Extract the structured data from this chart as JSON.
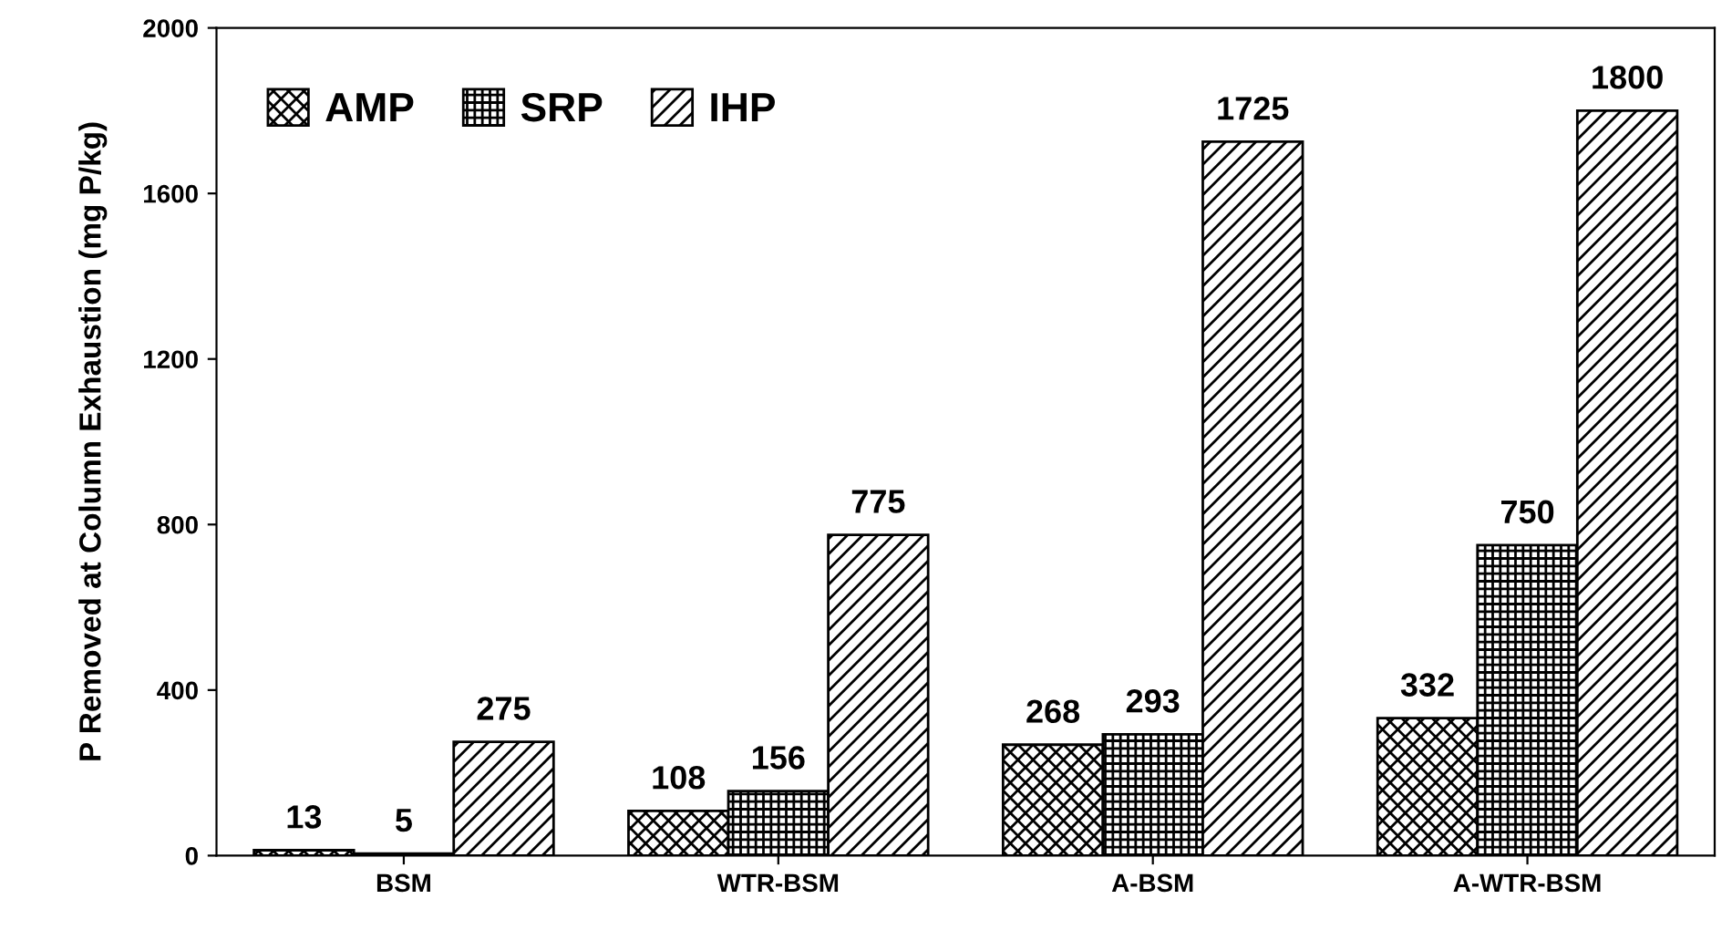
{
  "chart_data": {
    "type": "bar",
    "ylabel": "P Removed at Column Exhaustion (mg P/kg)",
    "categories": [
      "BSM",
      "WTR-BSM",
      "A-BSM",
      "A-WTR-BSM"
    ],
    "series": [
      {
        "name": "AMP",
        "color": "#000000",
        "values": [
          13,
          108,
          268,
          332
        ]
      },
      {
        "name": "SRP",
        "color": "#000000",
        "values": [
          5,
          156,
          293,
          750
        ]
      },
      {
        "name": "IHP",
        "color": "#000000",
        "values": [
          275,
          775,
          1725,
          1800
        ]
      }
    ],
    "ylim": [
      0,
      2000
    ],
    "yticks": [
      0,
      400,
      800,
      1200,
      1600,
      2000
    ],
    "data_labels": true,
    "legend": "top left",
    "grid": false
  }
}
